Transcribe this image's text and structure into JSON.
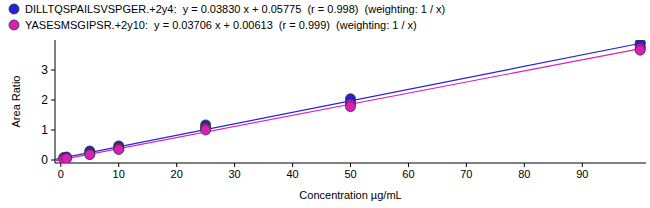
{
  "chart_data": {
    "type": "scatter",
    "x_label": "Concentration µg/mL",
    "y_label": "Area Ratio",
    "xlim": [
      -1,
      101
    ],
    "ylim": [
      -0.1,
      4.0
    ],
    "xticks": [
      0,
      10,
      20,
      30,
      40,
      50,
      60,
      70,
      80,
      90
    ],
    "yticks": [
      0,
      1,
      2,
      3
    ],
    "grid": false,
    "legend": "top",
    "series": [
      {
        "name": "DILLTQSPAILSVSPGER.+2y4:  y = 0.03830 x + 0.05775  (r = 0.998)  (weighting: 1 / x)",
        "color": "#2323d8",
        "marker": "circle",
        "line_style": "solid",
        "slope": 0.0383,
        "intercept": 0.05775,
        "x": [
          0.5,
          1,
          5,
          5,
          10,
          10,
          25,
          25,
          50,
          50,
          100,
          100
        ],
        "values": [
          0.08,
          0.1,
          0.3,
          0.25,
          0.47,
          0.42,
          1.17,
          1.08,
          2.04,
          1.93,
          3.9,
          3.82
        ]
      },
      {
        "name": "YASESMSGIPSR.+2y10:  y = 0.03706 x + 0.00613  (r = 0.999)  (weighting: 1 / x)",
        "color": "#d81fb8",
        "marker": "circle",
        "line_style": "solid",
        "slope": 0.03706,
        "intercept": 0.00613,
        "x": [
          0.5,
          1,
          5,
          5,
          10,
          10,
          25,
          25,
          50,
          50,
          100,
          100
        ],
        "values": [
          0.03,
          0.05,
          0.2,
          0.18,
          0.38,
          0.35,
          1.05,
          1.0,
          1.85,
          1.78,
          3.72,
          3.66
        ]
      }
    ]
  }
}
